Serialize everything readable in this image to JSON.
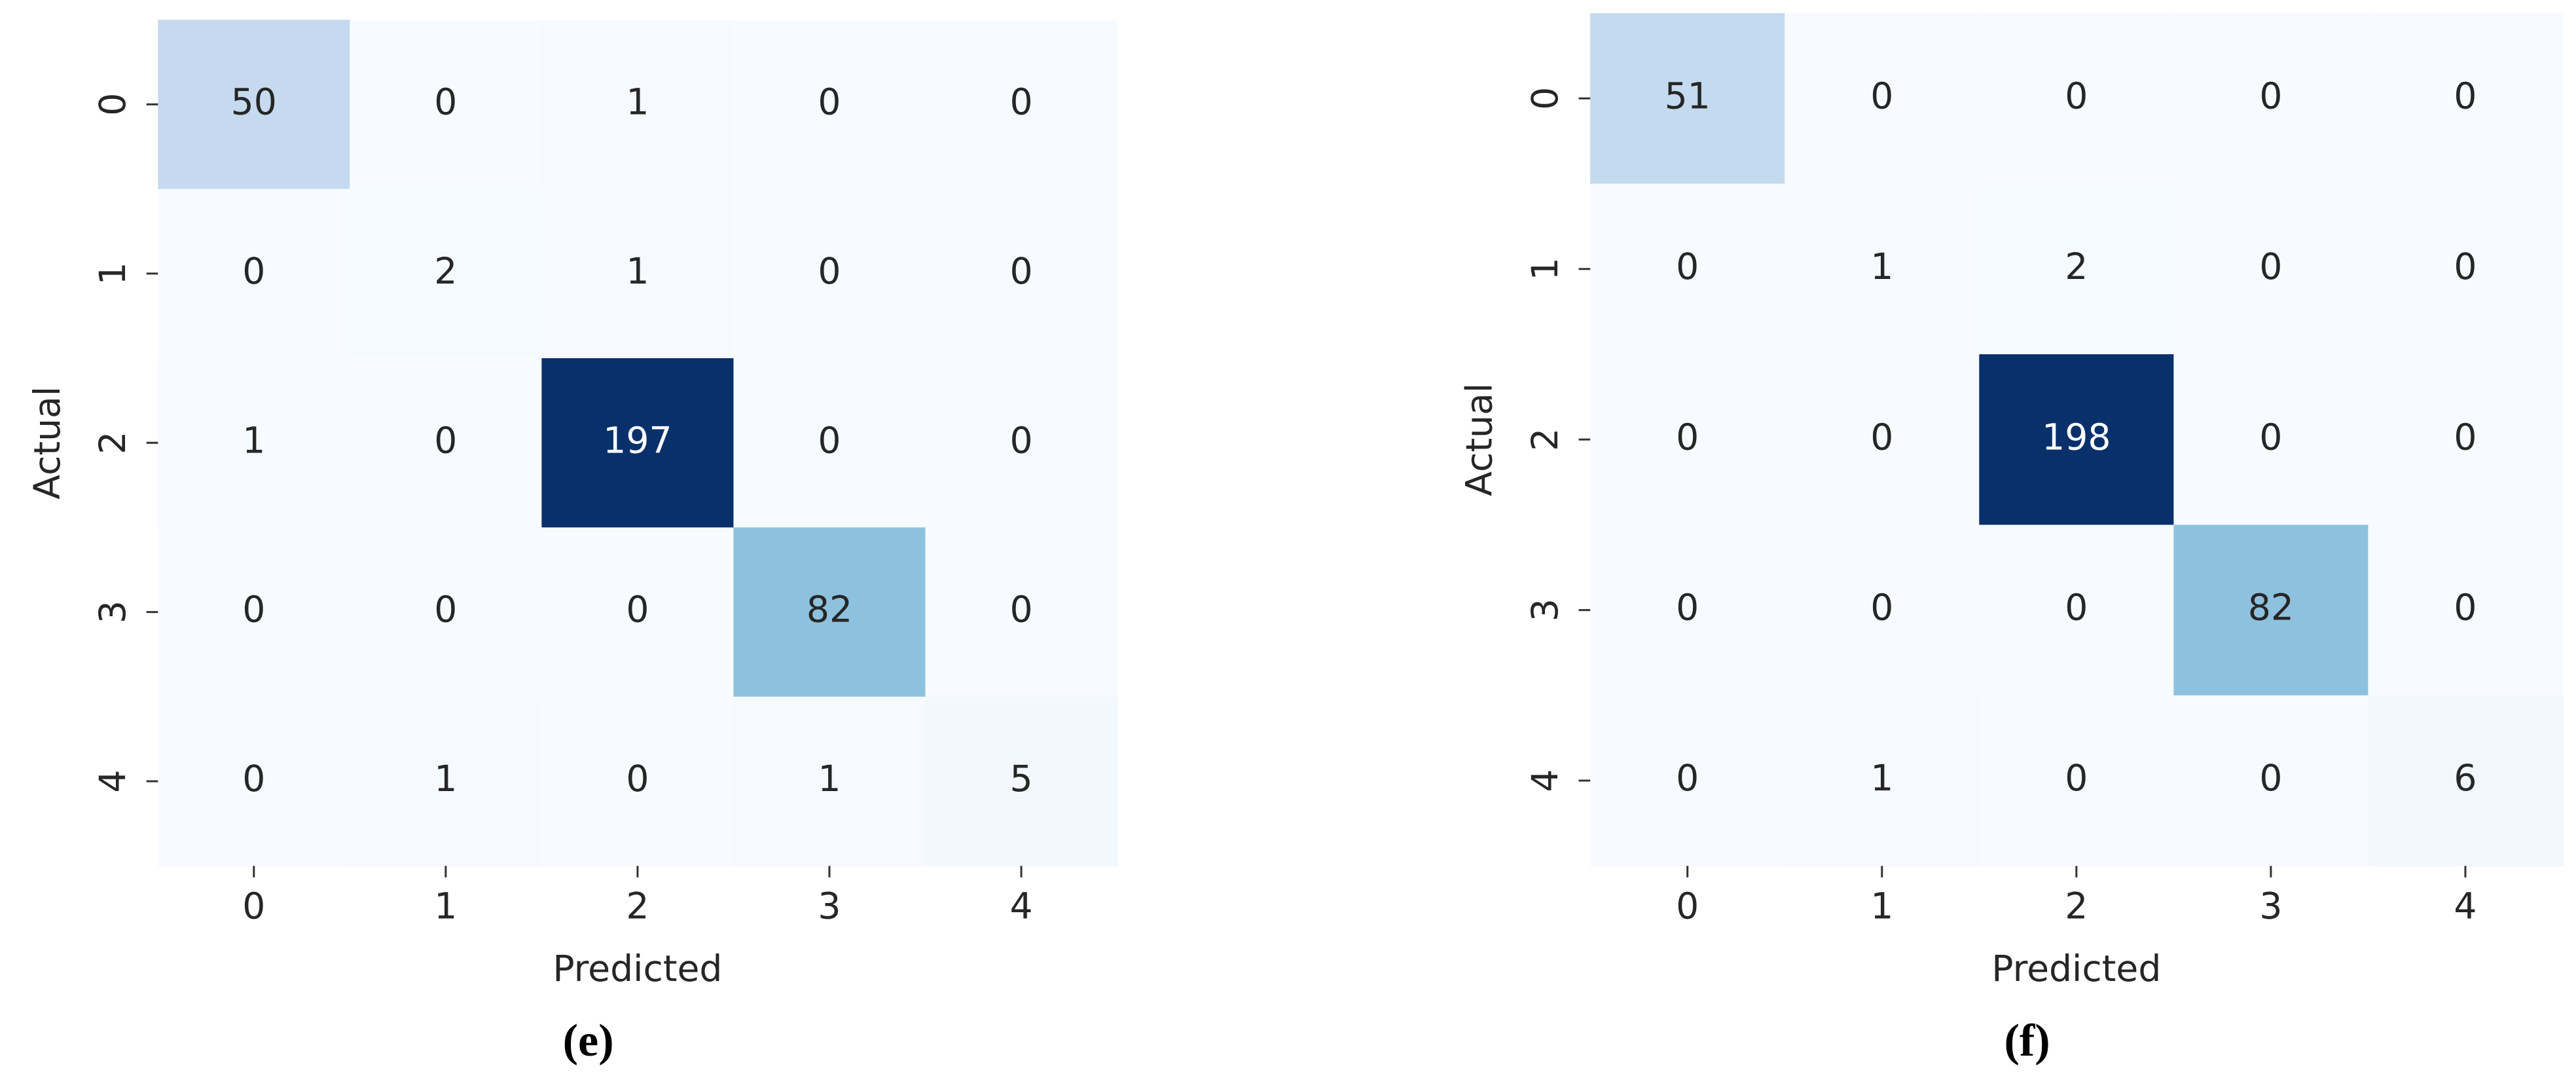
{
  "chart_data": [
    {
      "type": "heatmap",
      "caption": "(e)",
      "x_label": "Predicted",
      "y_label": "Actual",
      "colormap": "Blues",
      "x_categories": [
        "0",
        "1",
        "2",
        "3",
        "4"
      ],
      "y_categories": [
        "0",
        "1",
        "2",
        "3",
        "4"
      ],
      "values": [
        [
          50,
          0,
          1,
          0,
          0
        ],
        [
          0,
          2,
          1,
          0,
          0
        ],
        [
          1,
          0,
          197,
          0,
          0
        ],
        [
          0,
          0,
          0,
          82,
          0
        ],
        [
          0,
          1,
          0,
          1,
          5
        ]
      ]
    },
    {
      "type": "heatmap",
      "caption": "(f)",
      "x_label": "Predicted",
      "y_label": "Actual",
      "colormap": "Blues",
      "x_categories": [
        "0",
        "1",
        "2",
        "3",
        "4"
      ],
      "y_categories": [
        "0",
        "1",
        "2",
        "3",
        "4"
      ],
      "values": [
        [
          51,
          0,
          0,
          0,
          0
        ],
        [
          0,
          1,
          2,
          0,
          0
        ],
        [
          0,
          0,
          198,
          0,
          0
        ],
        [
          0,
          0,
          0,
          82,
          0
        ],
        [
          0,
          1,
          0,
          0,
          6
        ]
      ]
    }
  ]
}
